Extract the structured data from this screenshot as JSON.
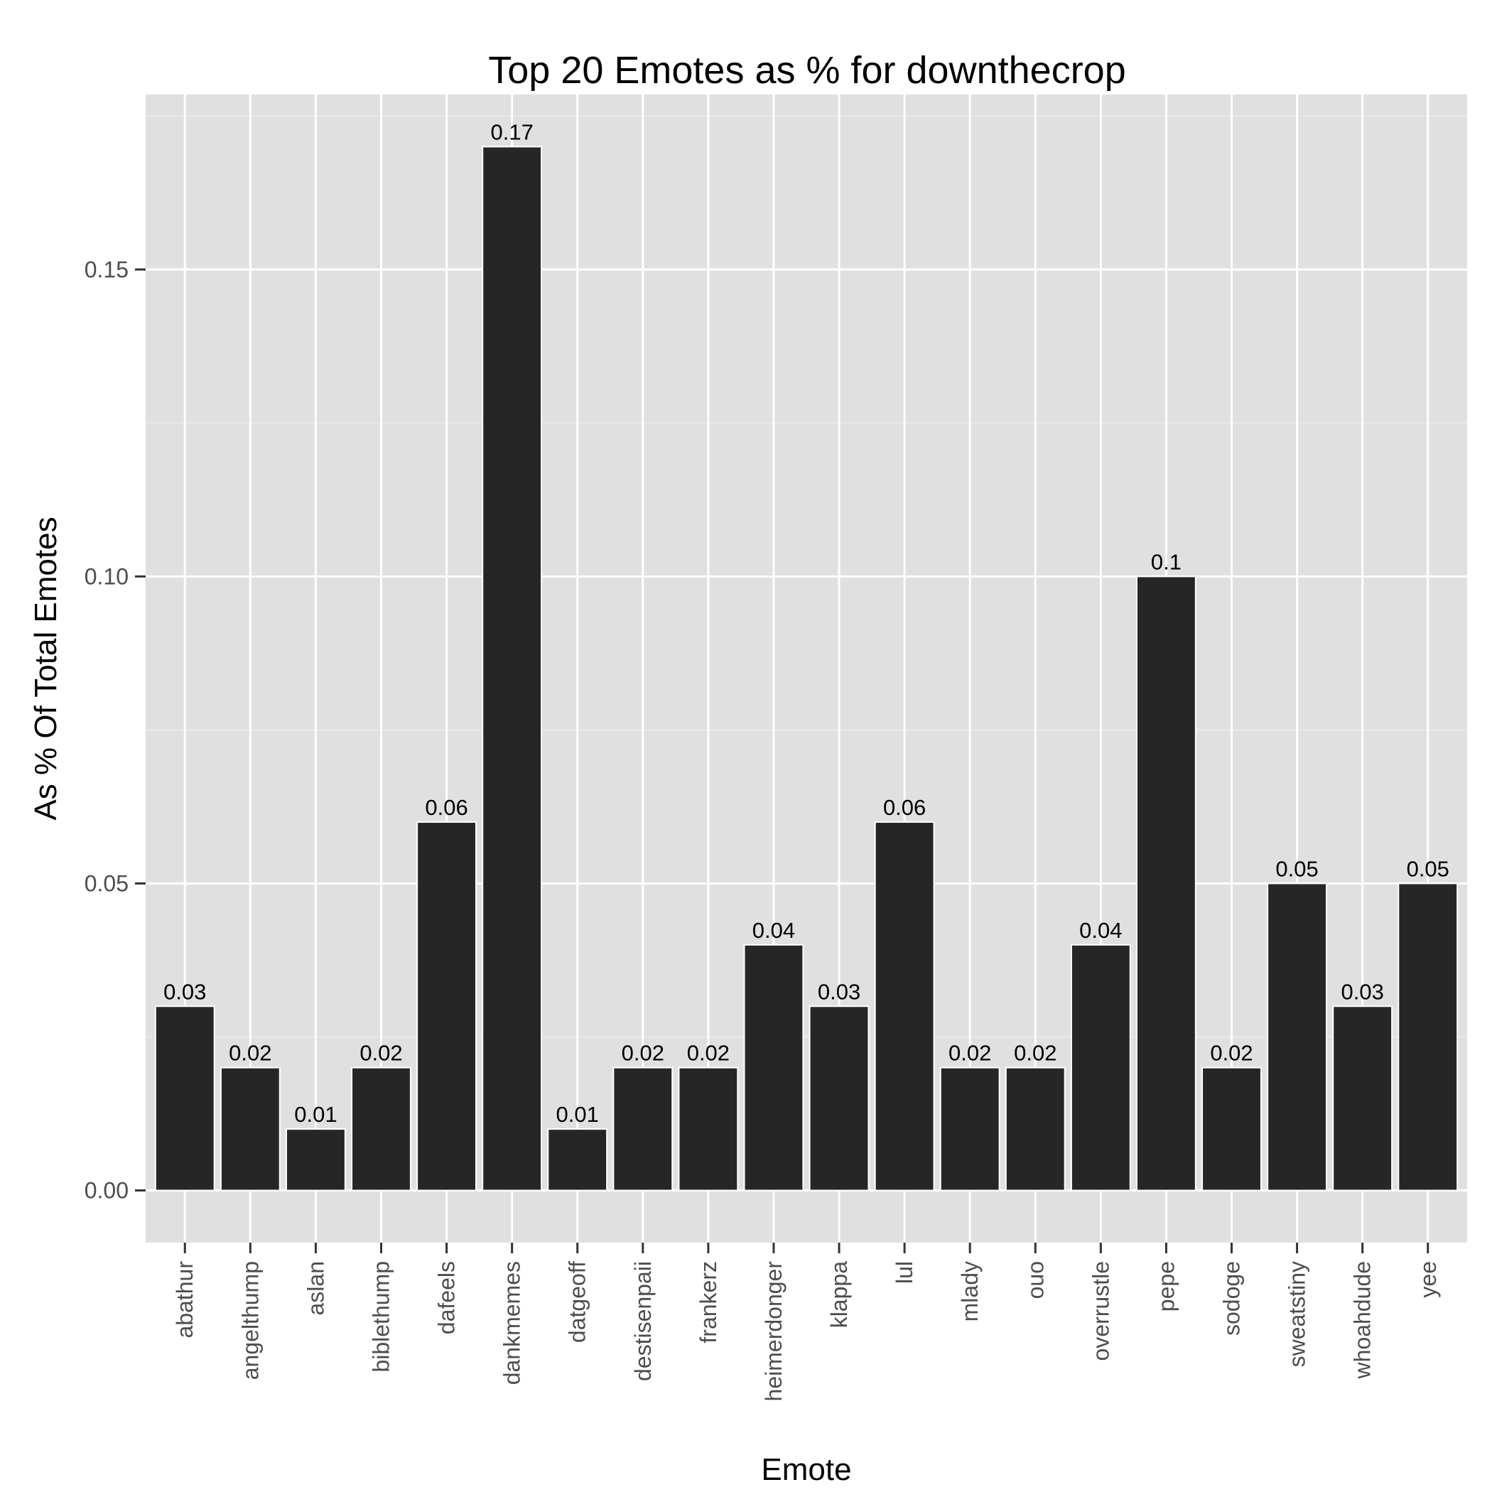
{
  "chart_data": {
    "type": "bar",
    "title": "Top 20 Emotes as % for downthecrop",
    "xlabel": "Emote",
    "ylabel": "As % Of Total Emotes",
    "categories": [
      "abathur",
      "angelthump",
      "aslan",
      "biblethump",
      "dafeels",
      "dankmemes",
      "datgeoff",
      "destisenpaii",
      "frankerz",
      "heimerdonger",
      "klappa",
      "lul",
      "mlady",
      "ouo",
      "overrustle",
      "pepe",
      "sodoge",
      "sweatstiny",
      "whoahdude",
      "yee"
    ],
    "values": [
      0.03,
      0.02,
      0.01,
      0.02,
      0.06,
      0.17,
      0.01,
      0.02,
      0.02,
      0.04,
      0.03,
      0.06,
      0.02,
      0.02,
      0.04,
      0.1,
      0.02,
      0.05,
      0.03,
      0.05
    ],
    "value_labels": [
      "0.03",
      "0.02",
      "0.01",
      "0.02",
      "0.06",
      "0.17",
      "0.01",
      "0.02",
      "0.02",
      "0.04",
      "0.03",
      "0.06",
      "0.02",
      "0.02",
      "0.04",
      "0.1",
      "0.02",
      "0.05",
      "0.03",
      "0.05"
    ],
    "y_ticks": [
      0.0,
      0.05,
      0.1,
      0.15
    ],
    "y_tick_labels": [
      "0.00",
      "0.05",
      "0.10",
      "0.15"
    ],
    "ylim": [
      -0.0085,
      0.1785
    ],
    "grid": true,
    "legend": "none",
    "colors": {
      "bar": "#262626",
      "panel": "#e0e0e0",
      "grid_major": "#ffffff",
      "grid_minor": "#ebebeb",
      "tick_text": "#4d4d4d"
    }
  }
}
